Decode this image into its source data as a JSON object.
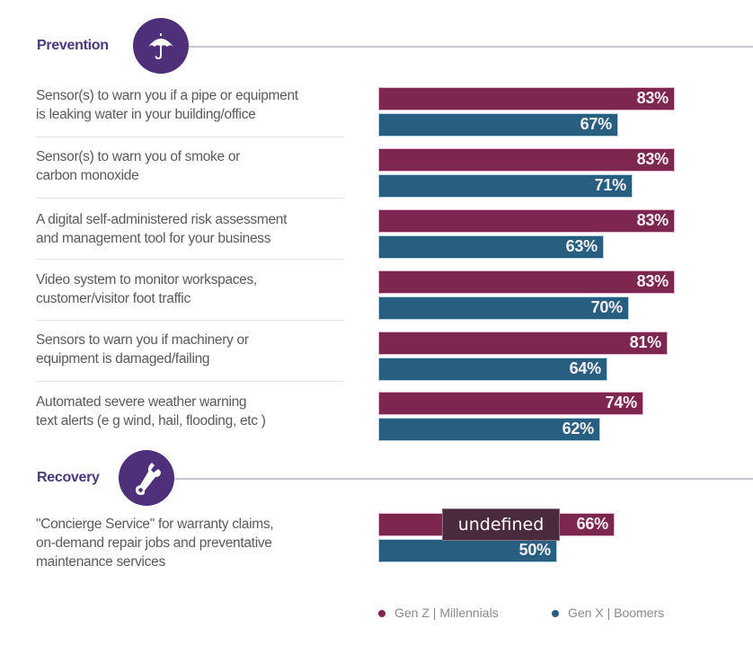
{
  "colors": {
    "series_0": "#7c2650",
    "series_1": "#285f80",
    "section_accent": "#4d2f7a"
  },
  "sections": [
    {
      "title": "Prevention",
      "icon": "umbrella-icon"
    },
    {
      "title": "Recovery",
      "icon": "wrench-icon"
    }
  ],
  "tooltip": {
    "text": "undefined"
  },
  "chart_data": {
    "type": "bar",
    "orientation": "horizontal",
    "title": "",
    "xlabel": "",
    "ylabel": "",
    "xlim": [
      0,
      100
    ],
    "grid": false,
    "legend_position": "bottom-right",
    "value_format": "percent",
    "groups": [
      {
        "name": "Prevention",
        "categories": [
          0,
          1,
          2,
          3,
          4,
          5
        ]
      },
      {
        "name": "Recovery",
        "categories": [
          6
        ]
      }
    ],
    "categories": [
      [
        "Sensor(s) to warn you if a pipe or equipment",
        "is leaking water in your building/office"
      ],
      [
        "Sensor(s) to warn you of smoke or",
        "carbon monoxide"
      ],
      [
        "A digital self-administered risk assessment",
        "and management tool for your business"
      ],
      [
        "Video system to monitor workspaces,",
        "customer/visitor foot traffic"
      ],
      [
        "Sensors to warn you if machinery or",
        "equipment is damaged/failing"
      ],
      [
        "Automated severe weather warning",
        "text alerts (e g  wind, hail, flooding, etc )"
      ],
      [
        "\"Concierge Service\" for warranty claims,",
        "on-demand repair jobs and preventative",
        "maintenance services"
      ]
    ],
    "series": [
      {
        "name": "Gen Z | Millennials",
        "values": [
          83,
          83,
          83,
          83,
          81,
          74,
          66
        ],
        "labels": [
          "83%",
          "83%",
          "83%",
          "83%",
          "81%",
          "74%",
          "66%"
        ]
      },
      {
        "name": "Gen X | Boomers",
        "values": [
          67,
          71,
          63,
          70,
          64,
          62,
          50
        ],
        "labels": [
          "67%",
          "71%",
          "63%",
          "70%",
          "64%",
          "62%",
          "50%"
        ]
      }
    ],
    "legend": [
      "Gen Z | Millennials",
      "Gen X | Boomers"
    ]
  }
}
